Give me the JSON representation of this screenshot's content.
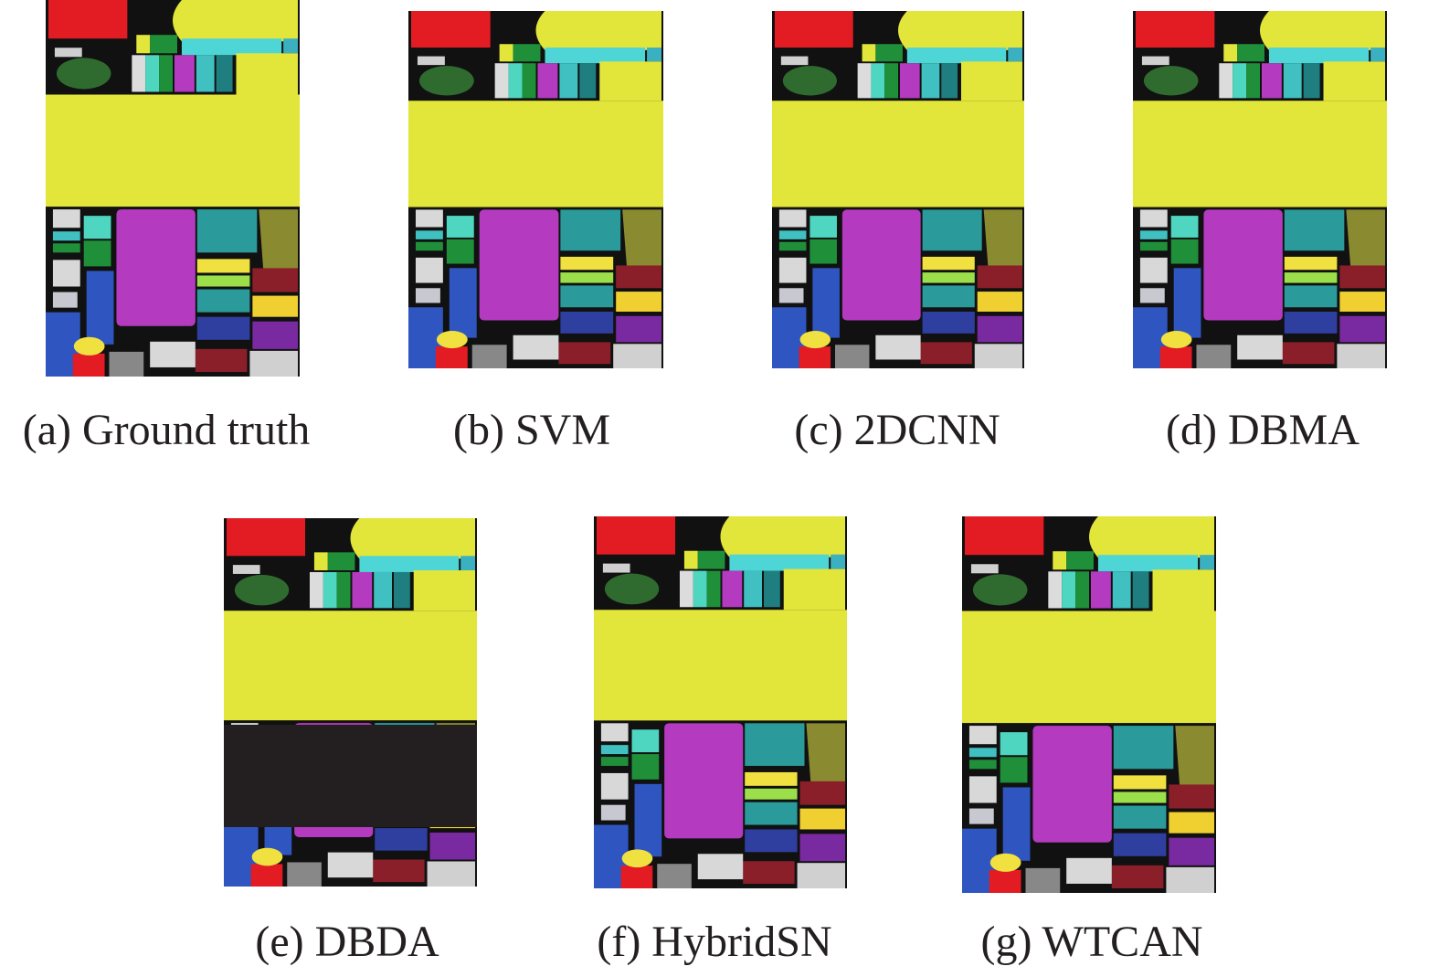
{
  "figure": {
    "panels": [
      {
        "caption": "(a) Ground truth"
      },
      {
        "caption": "(b) SVM"
      },
      {
        "caption": "(c) 2DCNN"
      },
      {
        "caption": "(d) DBMA"
      },
      {
        "caption": "(e) DBDA"
      },
      {
        "caption": "(f) HybridSN"
      },
      {
        "caption": "(g) WTCAN"
      }
    ]
  }
}
